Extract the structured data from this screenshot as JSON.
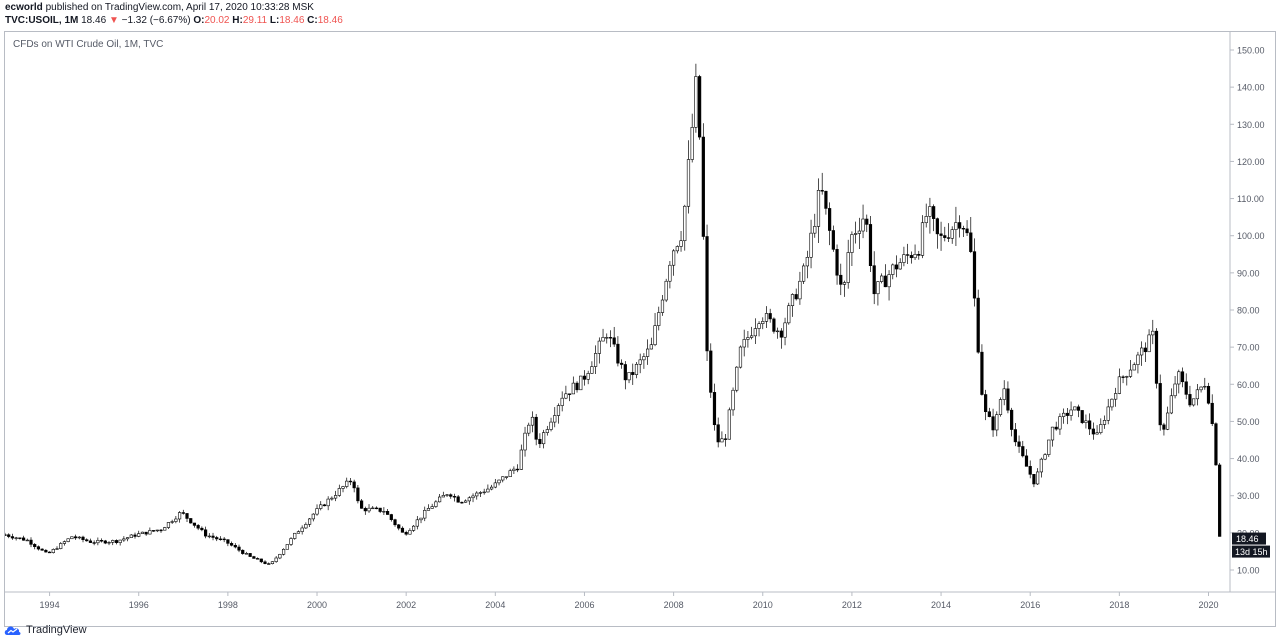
{
  "header": {
    "publisher": "ecworld",
    "published_text": "published on TradingView.com, April 17, 2020 10:33:28 MSK",
    "symbol": "TVC:USOIL, 1M",
    "last": "18.46",
    "change_arrow": "▼",
    "change": "−1.32 (−6.67%)",
    "o_label": "O:",
    "o_value": "20.02",
    "h_label": "H:",
    "h_value": "29.11",
    "l_label": "L:",
    "l_value": "18.46",
    "c_label": "C:",
    "c_value": "18.46"
  },
  "footer": {
    "brand": "TradingView",
    "logo_icon": "tradingview-logo-icon"
  },
  "colors": {
    "candle": "#000000",
    "axis": "#b8bcc4",
    "tick_text": "#555a66",
    "label_bg": "#131722",
    "down_text": "#ef5350"
  },
  "chart_data": {
    "type": "candlestick",
    "title": "CFDs on WTI Crude Oil, 1M, TVC",
    "interval": "1M",
    "x_range": [
      1993.0,
      2020.37
    ],
    "ylim": [
      0,
      155
    ],
    "y_ticks": [
      10,
      20,
      30,
      40,
      50,
      60,
      70,
      80,
      90,
      100,
      110,
      120,
      130,
      140,
      150
    ],
    "y_tick_labels": [
      "10.00",
      "20.00",
      "30.00",
      "40.00",
      "50.00",
      "60.00",
      "70.00",
      "80.00",
      "90.00",
      "100.00",
      "110.00",
      "120.00",
      "130.00",
      "140.00",
      "150.00"
    ],
    "x_ticks": [
      1994,
      1996,
      1998,
      2000,
      2002,
      2004,
      2006,
      2008,
      2010,
      2012,
      2014,
      2016,
      2018,
      2020
    ],
    "x_tick_labels": [
      "1994",
      "1996",
      "1998",
      "2000",
      "2002",
      "2004",
      "2006",
      "2008",
      "2010",
      "2012",
      "2014",
      "2016",
      "2018",
      "2020"
    ],
    "last_price_label": "18.46",
    "countdown_label": "13d 15h",
    "close_anchors": [
      [
        1993.0,
        19.5
      ],
      [
        1993.5,
        18.0
      ],
      [
        1993.95,
        14.2
      ],
      [
        1994.5,
        19.0
      ],
      [
        1994.95,
        17.5
      ],
      [
        1995.5,
        17.8
      ],
      [
        1995.95,
        19.5
      ],
      [
        1996.5,
        21.0
      ],
      [
        1996.95,
        25.5
      ],
      [
        1997.5,
        19.5
      ],
      [
        1997.95,
        17.6
      ],
      [
        1998.5,
        13.5
      ],
      [
        1998.95,
        11.3
      ],
      [
        1999.5,
        19.5
      ],
      [
        1999.95,
        25.5
      ],
      [
        2000.5,
        31.5
      ],
      [
        2000.8,
        34.5
      ],
      [
        2000.95,
        26.5
      ],
      [
        2001.5,
        26.0
      ],
      [
        2001.95,
        19.5
      ],
      [
        2002.5,
        26.5
      ],
      [
        2002.95,
        31.0
      ],
      [
        2003.2,
        28.5
      ],
      [
        2003.5,
        30.0
      ],
      [
        2003.95,
        32.5
      ],
      [
        2004.5,
        38.0
      ],
      [
        2004.8,
        52.0
      ],
      [
        2004.95,
        43.5
      ],
      [
        2005.5,
        57.0
      ],
      [
        2005.95,
        61.0
      ],
      [
        2006.5,
        74.0
      ],
      [
        2006.95,
        61.0
      ],
      [
        2007.5,
        70.0
      ],
      [
        2007.95,
        95.5
      ],
      [
        2008.2,
        101.5
      ],
      [
        2008.4,
        127.0
      ],
      [
        2008.5,
        140.0
      ],
      [
        2008.6,
        124.0
      ],
      [
        2008.75,
        68.0
      ],
      [
        2008.95,
        44.6
      ],
      [
        2009.15,
        45.0
      ],
      [
        2009.5,
        69.0
      ],
      [
        2009.95,
        79.0
      ],
      [
        2010.4,
        74.0
      ],
      [
        2010.95,
        91.0
      ],
      [
        2011.3,
        113.0
      ],
      [
        2011.6,
        95.0
      ],
      [
        2011.8,
        83.0
      ],
      [
        2011.95,
        99.0
      ],
      [
        2012.3,
        106.0
      ],
      [
        2012.5,
        84.5
      ],
      [
        2012.95,
        91.5
      ],
      [
        2013.5,
        97.0
      ],
      [
        2013.7,
        107.0
      ],
      [
        2013.95,
        98.5
      ],
      [
        2014.45,
        105.0
      ],
      [
        2014.65,
        97.5
      ],
      [
        2014.95,
        53.0
      ],
      [
        2015.2,
        48.0
      ],
      [
        2015.4,
        60.0
      ],
      [
        2015.65,
        45.0
      ],
      [
        2015.95,
        37.0
      ],
      [
        2016.1,
        33.5
      ],
      [
        2016.5,
        48.0
      ],
      [
        2016.95,
        53.7
      ],
      [
        2017.5,
        46.0
      ],
      [
        2017.95,
        60.0
      ],
      [
        2018.4,
        67.0
      ],
      [
        2018.75,
        73.0
      ],
      [
        2018.95,
        45.0
      ],
      [
        2019.3,
        63.0
      ],
      [
        2019.6,
        55.0
      ],
      [
        2019.95,
        61.0
      ],
      [
        2020.05,
        51.5
      ],
      [
        2020.15,
        45.0
      ],
      [
        2020.22,
        20.0
      ],
      [
        2020.29,
        18.46
      ]
    ]
  }
}
